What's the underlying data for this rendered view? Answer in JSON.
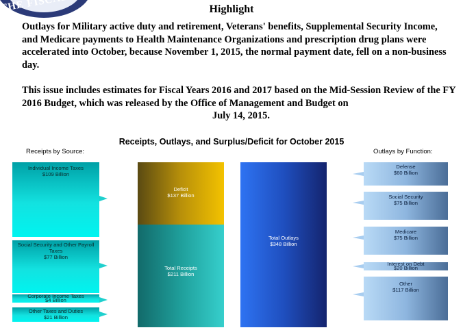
{
  "seal": {
    "text": "THE FISCAL"
  },
  "header": {
    "title": "Highlight"
  },
  "paragraphs": {
    "p1": "Outlays for Military active duty and retirement, Veterans' benefits, Supplemental Security Income, and Medicare payments to Health Maintenance Organizations and prescription drug plans were accelerated into October, because November 1, 2015, the normal payment date, fell on a non-business day.",
    "p2_main": "This issue includes estimates for Fiscal Years 2016 and 2017 based on the Mid-Session Review of the FY 2016 Budget, which was released by the Office of Management and Budget on",
    "p2_date": "July 14, 2015."
  },
  "chart": {
    "title": "Receipts, Outlays, and Surplus/Deficit for October 2015",
    "receipts_label": "Receipts by Source:",
    "outlays_label": "Outlays by Function:",
    "receipts_sources": [
      {
        "name": "Individual Income Taxes",
        "value": "$109 Billion"
      },
      {
        "name": "Social Security and Other Payroll Taxes",
        "value": "$77 Billion"
      },
      {
        "name": "Corporate Income Taxes",
        "value": "$4 Billion"
      },
      {
        "name": "Other Taxes and Duties",
        "value": "$21 Billion"
      }
    ],
    "deficit": {
      "name": "Deficit",
      "value": "$137 Billion"
    },
    "total_receipts": {
      "name": "Total Receipts",
      "value": "$211 Billion"
    },
    "total_outlays": {
      "name": "Total Outlays",
      "value": "$348 Billion"
    },
    "outlays_functions": [
      {
        "name": "Defense",
        "value": "$60 Billion"
      },
      {
        "name": "Social Security",
        "value": "$75 Billion"
      },
      {
        "name": "Medicare",
        "value": "$75 Billion"
      },
      {
        "name": "Interest on Debt",
        "value": "$20 Billion"
      },
      {
        "name": "Other",
        "value": "$117 Billion"
      }
    ]
  },
  "colors": {
    "receipts_teal": "#13e2e0",
    "deficit_gold": "#f3c200",
    "outlays_blue": "#1f4fbf",
    "functions_lightblue": "#8eb6df"
  }
}
